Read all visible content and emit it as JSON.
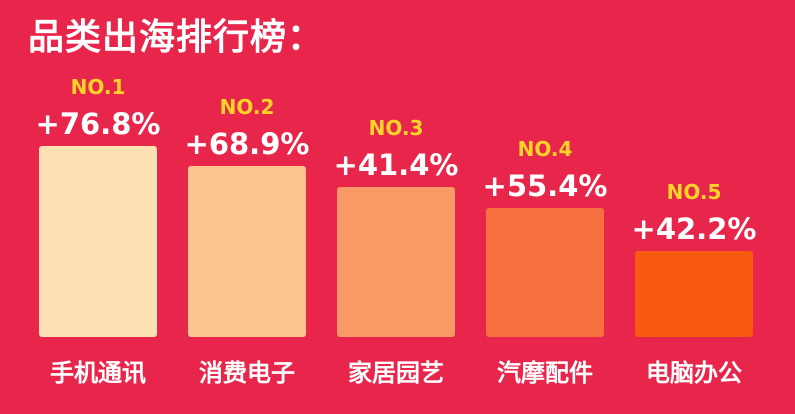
{
  "title": "品类出海排行榜：",
  "chart_data": {
    "type": "bar",
    "title": "品类出海排行榜：",
    "categories": [
      "手机通讯",
      "消费电子",
      "家居园艺",
      "汽摩配件",
      "电脑办公"
    ],
    "ranks": [
      "NO.1",
      "NO.2",
      "NO.3",
      "NO.4",
      "NO.5"
    ],
    "values": [
      76.8,
      68.9,
      41.4,
      55.4,
      42.2
    ],
    "value_labels": [
      "+76.8%",
      "+68.9%",
      "+41.4%",
      "+55.4%",
      "+42.2%"
    ],
    "bar_heights_rank": [
      1,
      2,
      3,
      4,
      5
    ],
    "colors": {
      "background": "#e8264c",
      "bars": [
        "#fde0b4",
        "#fcc590",
        "#f99a66",
        "#f8703f",
        "#f85a12"
      ],
      "rank_text": "#ffd428",
      "value_text": "#ffffff",
      "category_text": "#ffffff"
    },
    "grid": false,
    "legend": "none"
  }
}
